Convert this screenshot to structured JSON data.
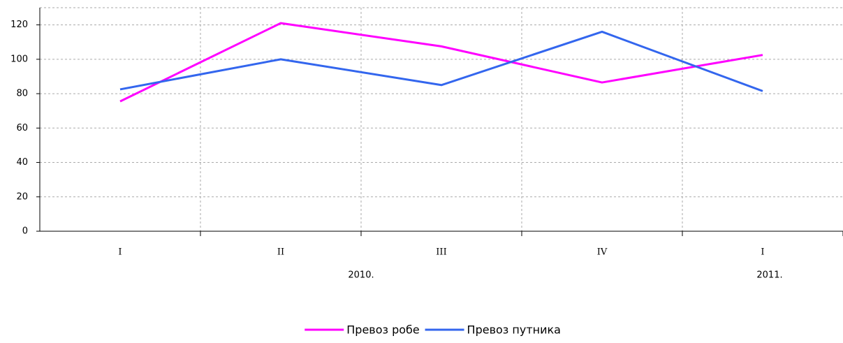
{
  "chart_data": {
    "type": "line",
    "categories": [
      "I",
      "II",
      "III",
      "IV",
      "I"
    ],
    "x_groups": [
      {
        "label": "2010.",
        "count": 4
      },
      {
        "label": "2011.",
        "count": 1
      }
    ],
    "series": [
      {
        "name": "Превоз робе",
        "color": "#ff00ff",
        "values": [
          75.5,
          121,
          107.5,
          86.5,
          102.5
        ]
      },
      {
        "name": "Превоз путника",
        "color": "#3366ee",
        "values": [
          82.5,
          100,
          85,
          116,
          81.5
        ]
      }
    ],
    "ylim": [
      0,
      130
    ],
    "yticks": [
      0,
      20,
      40,
      60,
      80,
      100,
      120
    ],
    "grid": true,
    "legend": "bottom"
  }
}
